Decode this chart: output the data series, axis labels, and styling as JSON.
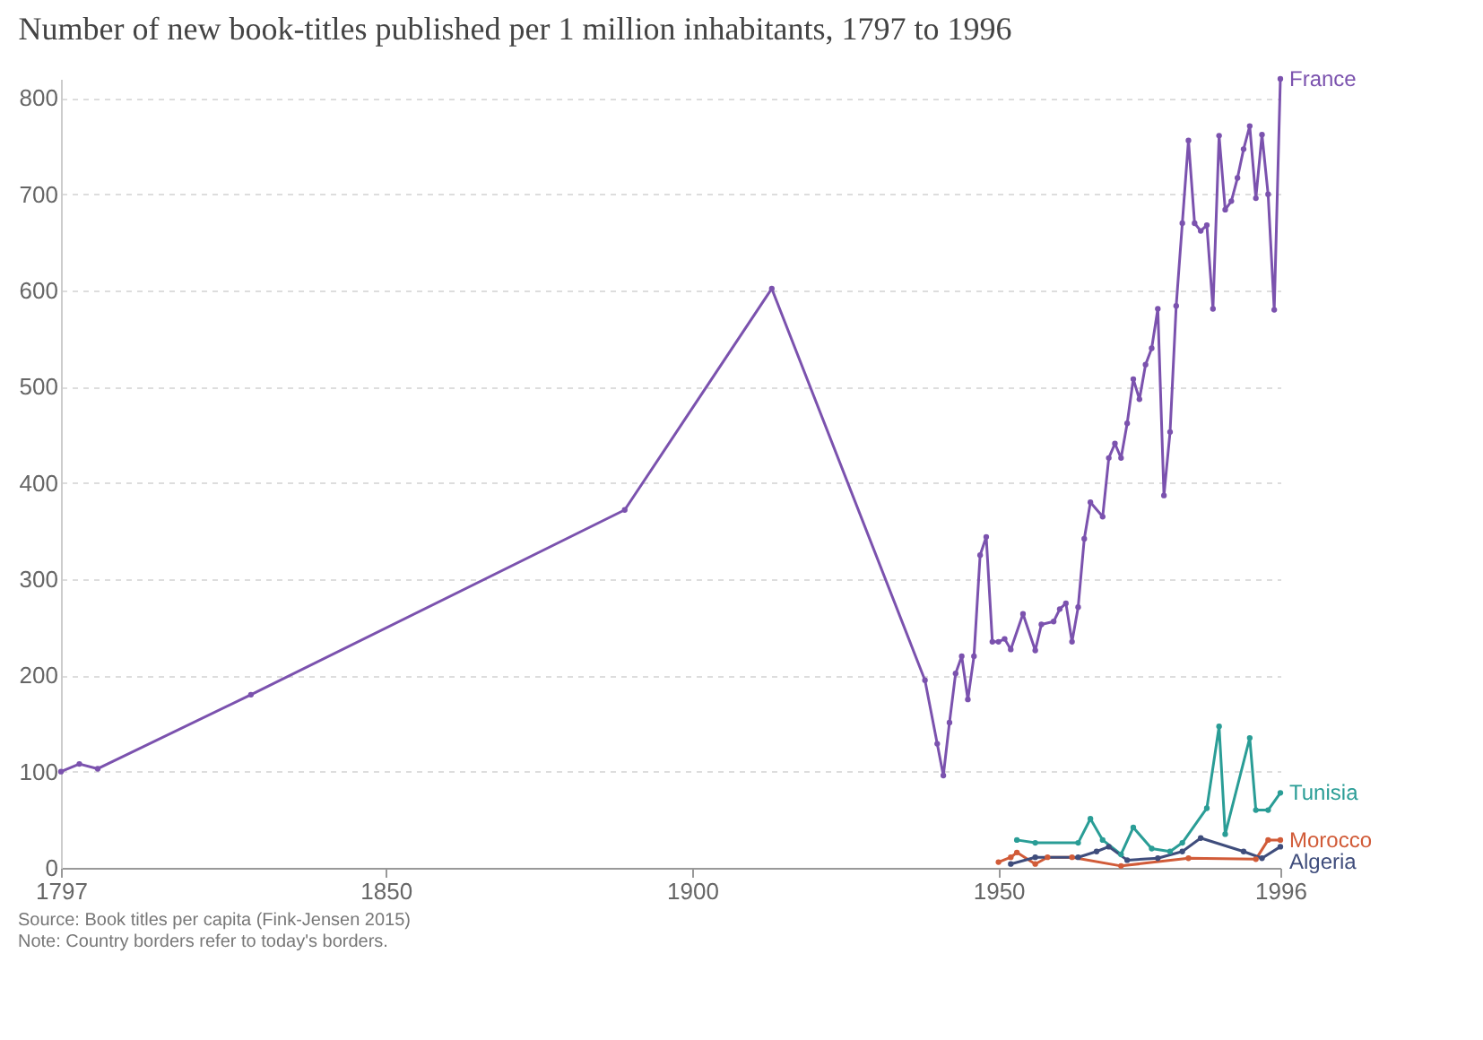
{
  "chart_data": {
    "type": "line",
    "title": "Number of new book-titles published per 1 million inhabitants, 1797 to 1996",
    "annotations": [
      "Source: Book titles per capita (Fink-Jensen 2015)",
      "Note: Country borders refer to today's borders."
    ],
    "xlim": [
      1797,
      1996
    ],
    "xticks": [
      1797,
      1850,
      1900,
      1950,
      1996
    ],
    "ylim": [
      0,
      820
    ],
    "yticks": [
      0,
      100,
      200,
      300,
      400,
      500,
      600,
      700,
      800
    ],
    "grid": "y",
    "marker": "circle",
    "line_style": "solid",
    "series": [
      {
        "name": "France",
        "color": "#7b52ae",
        "x": [
          1797,
          1800,
          1803,
          1828,
          1889,
          1913,
          1938,
          1940,
          1941,
          1942,
          1943,
          1944,
          1945,
          1946,
          1947,
          1948,
          1949,
          1950,
          1951,
          1952,
          1954,
          1956,
          1957,
          1959,
          1960,
          1961,
          1962,
          1963,
          1964,
          1965,
          1967,
          1968,
          1969,
          1970,
          1971,
          1972,
          1973,
          1974,
          1975,
          1976,
          1977,
          1978,
          1979,
          1980,
          1981,
          1982,
          1983,
          1984,
          1985,
          1986,
          1987,
          1988,
          1989,
          1990,
          1991,
          1992,
          1993,
          1994,
          1995,
          1996
        ],
        "values": [
          100,
          108,
          103,
          180,
          372,
          602,
          195,
          129,
          96,
          151,
          202,
          220,
          175,
          220,
          325,
          344,
          235,
          235,
          238,
          227,
          264,
          226,
          253,
          256,
          269,
          275,
          235,
          271,
          342,
          380,
          365,
          426,
          441,
          426,
          462,
          508,
          487,
          523,
          540,
          581,
          387,
          453,
          584,
          670,
          756,
          670,
          662,
          668,
          581,
          761,
          684,
          693,
          717,
          747,
          771,
          696,
          762,
          700,
          580,
          820
        ]
      },
      {
        "name": "Tunisia",
        "color": "#2a9d96",
        "x": [
          1953,
          1956,
          1963,
          1965,
          1967,
          1970,
          1972,
          1975,
          1978,
          1980,
          1984,
          1986,
          1987,
          1991,
          1992,
          1994,
          1996
        ],
        "values": [
          29,
          26,
          26,
          51,
          29,
          14,
          42,
          20,
          17,
          26,
          62,
          147,
          35,
          135,
          60,
          60,
          78
        ]
      },
      {
        "name": "Morocco",
        "color": "#d15b38",
        "x": [
          1950,
          1952,
          1953,
          1956,
          1958,
          1962,
          1970,
          1981,
          1992,
          1994,
          1996
        ],
        "values": [
          6,
          11,
          16,
          4,
          11,
          11,
          2,
          10,
          9,
          29,
          29
        ]
      },
      {
        "name": "Algeria",
        "color": "#3f4d7c",
        "x": [
          1952,
          1956,
          1963,
          1966,
          1968,
          1971,
          1976,
          1980,
          1983,
          1990,
          1993,
          1996
        ],
        "values": [
          4,
          11,
          11,
          17,
          22,
          8,
          10,
          17,
          31,
          17,
          10,
          22
        ]
      }
    ]
  }
}
